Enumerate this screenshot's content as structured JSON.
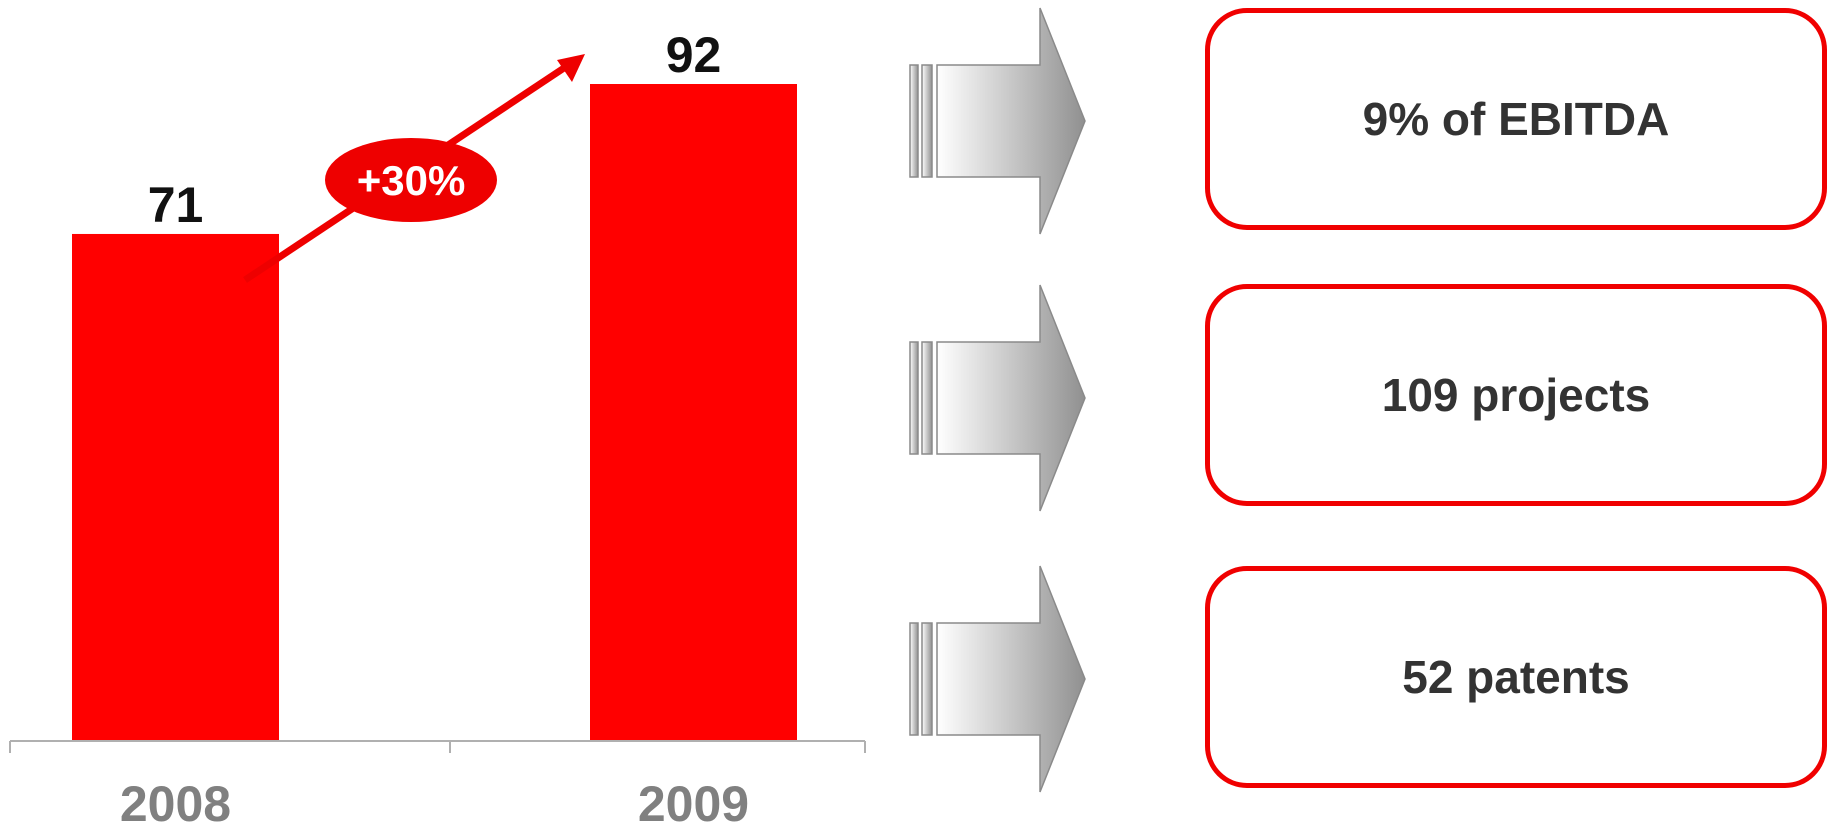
{
  "chart_data": {
    "type": "bar",
    "categories": [
      "2008",
      "2009"
    ],
    "values": [
      71,
      92
    ],
    "value_labels": [
      "71",
      "92"
    ],
    "growth_label": "+30%",
    "ylim": [
      0,
      100
    ],
    "grid": false,
    "bar_color": "#ff0000",
    "growth_color": "#ee0000",
    "category_color": "#808080"
  },
  "highlights": [
    {
      "text": "9% of EBITDA"
    },
    {
      "text": "109 projects"
    },
    {
      "text": "52 patents"
    }
  ],
  "colors": {
    "box_border": "#f00000",
    "box_text": "#333333",
    "arrow_gradient_start": "#ffffff",
    "arrow_gradient_end": "#909090"
  }
}
